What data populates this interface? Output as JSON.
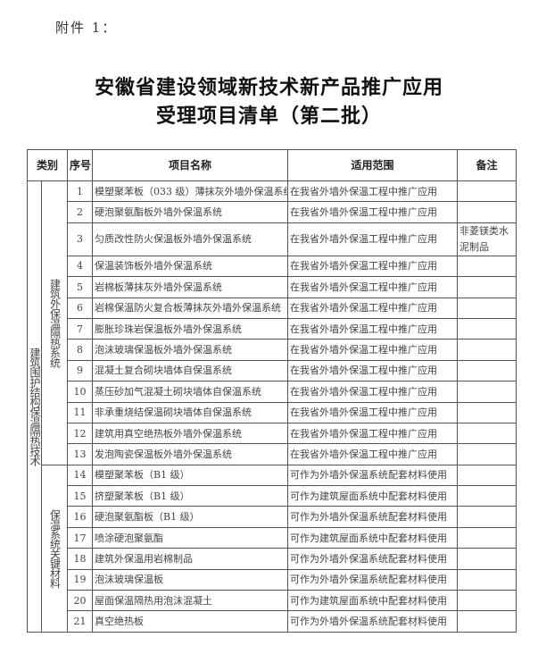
{
  "attachment_label": "附件 1：",
  "title_line1": "安徽省建设领域新技术新产品推广应用",
  "title_line2": "受理项目清单（第二批）",
  "table": {
    "headers": {
      "category": "类别",
      "seq": "序号",
      "name": "项目名称",
      "scope": "适用范围",
      "note": "备注"
    },
    "category": "建筑围护结构保温隔热技术",
    "groups": [
      {
        "subcategory": "建筑外保温隔热系统",
        "rows": [
          {
            "seq": "1",
            "name": "模塑聚苯板（033 级）薄抹灰外墙外保温系统",
            "scope": "在我省外墙外保温工程中推广应用",
            "note": ""
          },
          {
            "seq": "2",
            "name": "硬泡聚氨酯板外墙外保温系统",
            "scope": "在我省外墙外保温工程中推广应用",
            "note": ""
          },
          {
            "seq": "3",
            "name": "匀质改性防火保温板外墙外保温系统",
            "scope": "在我省外墙外保温工程中推广应用",
            "note": "非菱镁类水泥制品"
          },
          {
            "seq": "4",
            "name": "保温装饰板外墙外保温系统",
            "scope": "在我省外墙外保温工程中推广应用",
            "note": ""
          },
          {
            "seq": "5",
            "name": "岩棉板薄抹灰外墙外保温系统",
            "scope": "在我省外墙外保温工程中推广应用",
            "note": ""
          },
          {
            "seq": "6",
            "name": "岩棉保温防火复合板薄抹灰外墙外保温系统",
            "scope": "在我省外墙外保温工程中推广应用",
            "note": ""
          },
          {
            "seq": "7",
            "name": "膨胀珍珠岩保温板外墙外保温系统",
            "scope": "在我省外墙外保温工程中推广应用",
            "note": ""
          },
          {
            "seq": "8",
            "name": "泡沫玻璃保温板外墙外保温系统",
            "scope": "在我省外墙外保温工程中推广应用",
            "note": ""
          },
          {
            "seq": "9",
            "name": "混凝土复合砌块墙体自保温系统",
            "scope": "在我省外墙外保温工程中推广应用",
            "note": ""
          },
          {
            "seq": "10",
            "name": "蒸压砂加气混凝土砌块墙体自保温系统",
            "scope": "在我省外墙外保温工程中推广应用",
            "note": ""
          },
          {
            "seq": "11",
            "name": "非承重烧结保温砌块墙体自保温系统",
            "scope": "在我省外墙外保温工程中推广应用",
            "note": ""
          },
          {
            "seq": "12",
            "name": "建筑用真空绝热板外墙外保温系统",
            "scope": "在我省外墙外保温工程中推广应用",
            "note": ""
          },
          {
            "seq": "13",
            "name": "发泡陶瓷保温板外墙外保温系统",
            "scope": "在我省外墙外保温工程中推广应用",
            "note": ""
          }
        ]
      },
      {
        "subcategory": "保温系统关键材料",
        "rows": [
          {
            "seq": "14",
            "name": "模塑聚苯板（B1 级）",
            "scope": "可作为外墙外保温系统配套材料使用",
            "note": ""
          },
          {
            "seq": "15",
            "name": "挤塑聚苯板（B1 级）",
            "scope": "可作为建筑屋面系统中配套材料使用",
            "note": ""
          },
          {
            "seq": "16",
            "name": "硬泡聚氨酯板（B1 级）",
            "scope": "可作为外墙外保温系统配套材料使用",
            "note": ""
          },
          {
            "seq": "17",
            "name": "喷涂硬泡聚氨酯",
            "scope": "可作为建筑屋面系统中配套材料使用",
            "note": ""
          },
          {
            "seq": "18",
            "name": "建筑外保温用岩棉制品",
            "scope": "可作为外墙外保温系统配套材料使用",
            "note": ""
          },
          {
            "seq": "19",
            "name": "泡沫玻璃保温板",
            "scope": "可作为外墙外保温系统配套材料使用",
            "note": ""
          },
          {
            "seq": "20",
            "name": "屋面保温隔热用泡沫混凝土",
            "scope": "可作为建筑屋面系统中配套材料使用",
            "note": ""
          },
          {
            "seq": "21",
            "name": "真空绝热板",
            "scope": "可作为外墙外保温系统配套材料使用",
            "note": ""
          }
        ]
      }
    ]
  }
}
